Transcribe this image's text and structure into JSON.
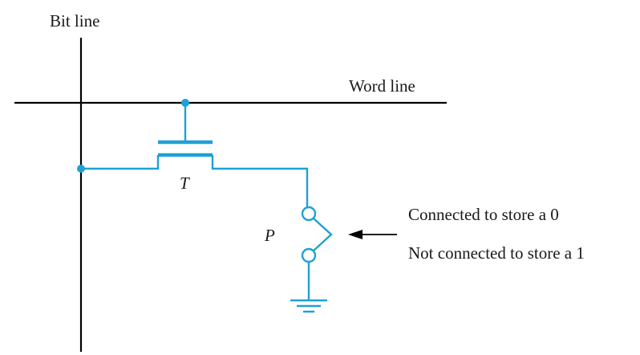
{
  "labels": {
    "bit_line": "Bit line",
    "word_line": "Word line",
    "transistor": "T",
    "fuse": "P",
    "connected": "Connected to store a 0",
    "not_connected": "Not connected to store a 1"
  },
  "colors": {
    "line": "#000000",
    "circuit": "#1fa0d6",
    "text": "#1a1a1a"
  }
}
